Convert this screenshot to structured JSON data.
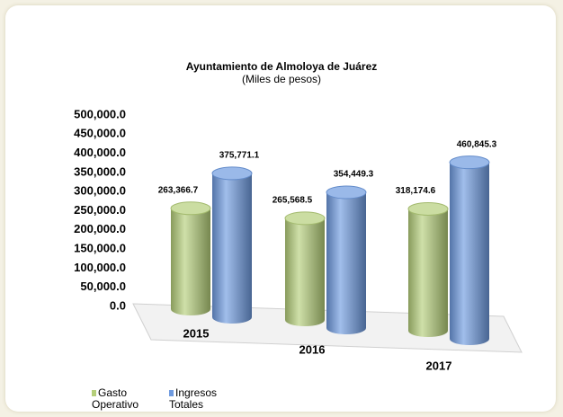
{
  "chart_data": {
    "type": "bar3d",
    "title": "Ayuntamiento de Almoloya de Juárez",
    "subtitle": "(Miles de pesos)",
    "categories": [
      "2015",
      "2016",
      "2017"
    ],
    "series": [
      {
        "name": "Gasto Operativo",
        "color": "#b5cf7a",
        "values": [
          263366.7,
          265568.5,
          318174.6
        ],
        "value_labels": [
          "263,366.7",
          "265,568.5",
          "318,174.6"
        ]
      },
      {
        "name": "Ingresos Totales",
        "color": "#6f9be0",
        "values": [
          375771.1,
          354449.3,
          460845.3
        ],
        "value_labels": [
          "375,771.1",
          "354,449.3",
          "460,845.3"
        ]
      }
    ],
    "ylim": [
      0,
      500000
    ],
    "yticks": [
      {
        "value": 0,
        "label": "0.0"
      },
      {
        "value": 50000,
        "label": "50,000.0"
      },
      {
        "value": 100000,
        "label": "100,000.0"
      },
      {
        "value": 150000,
        "label": "150,000.0"
      },
      {
        "value": 200000,
        "label": "200,000.0"
      },
      {
        "value": 250000,
        "label": "250,000.0"
      },
      {
        "value": 300000,
        "label": "300,000.0"
      },
      {
        "value": 350000,
        "label": "350,000.0"
      },
      {
        "value": 400000,
        "label": "400,000.0"
      },
      {
        "value": 450000,
        "label": "450,000.0"
      },
      {
        "value": 500000,
        "label": "500,000.0"
      }
    ],
    "grid": false,
    "legend": "bottom-left"
  }
}
